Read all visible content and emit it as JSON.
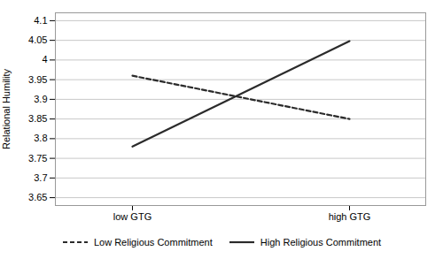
{
  "chart_data": {
    "type": "line",
    "categories": [
      "low GTG",
      "high GTG"
    ],
    "ylabel": "Relational Humility",
    "ylim": [
      3.63,
      4.12
    ],
    "yticks": [
      3.65,
      3.7,
      3.75,
      3.8,
      3.85,
      3.9,
      3.95,
      4,
      4.05,
      4.1
    ],
    "grid": true,
    "legend": "bottom",
    "series": [
      {
        "name": "Low Religious Commitment",
        "color": "#2b2b2b",
        "line_style": "dashed",
        "values": [
          3.96,
          3.85
        ]
      },
      {
        "name": "High Religious Commitment",
        "color": "#2b2b2b",
        "line_style": "solid",
        "values": [
          3.78,
          4.048
        ]
      }
    ]
  }
}
